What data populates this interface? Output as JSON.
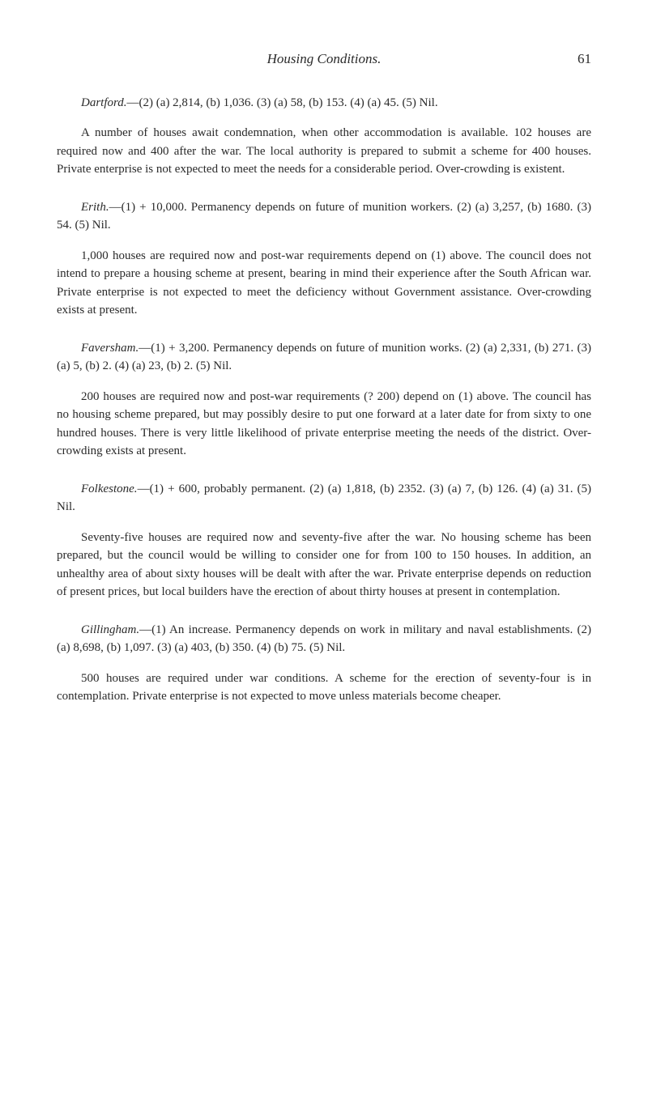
{
  "header": {
    "title": "Housing Conditions.",
    "pageNumber": "61"
  },
  "entries": [
    {
      "place": "Dartford.",
      "headData": "—(2) (a) 2,814, (b) 1,036. (3) (a) 58, (b) 153. (4) (a) 45. (5) Nil.",
      "body": "A number of houses await condemnation, when other accommodation is available. 102 houses are required now and 400 after the war. The local authority is prepared to submit a scheme for 400 houses. Private enterprise is not expected to meet the needs for a considerable period. Over-crowding is existent."
    },
    {
      "place": "Erith.",
      "headData": "—(1) + 10,000. Permanency depends on future of munition workers. (2) (a) 3,257, (b) 1680. (3) 54. (5) Nil.",
      "body": "1,000 houses are required now and post-war requirements depend on (1) above. The council does not intend to prepare a housing scheme at present, bearing in mind their experience after the South African war. Private enterprise is not expected to meet the deficiency without Government assistance. Over-crowding exists at present."
    },
    {
      "place": "Faversham.",
      "headData": "—(1) + 3,200. Permanency depends on future of munition works. (2) (a) 2,331, (b) 271. (3) (a) 5, (b) 2. (4) (a) 23, (b) 2. (5) Nil.",
      "body": "200 houses are required now and post-war requirements (? 200) depend on (1) above. The council has no housing scheme prepared, but may possibly desire to put one forward at a later date for from sixty to one hundred houses. There is very little likelihood of private enterprise meeting the needs of the district. Over-crowding exists at present."
    },
    {
      "place": "Folkestone.",
      "headData": "—(1) + 600, probably permanent. (2) (a) 1,818, (b) 2352. (3) (a) 7, (b) 126. (4) (a) 31. (5) Nil.",
      "body": "Seventy-five houses are required now and seventy-five after the war. No housing scheme has been prepared, but the council would be willing to consider one for from 100 to 150 houses. In addition, an unhealthy area of about sixty houses will be dealt with after the war. Private enterprise depends on reduction of present prices, but local builders have the erection of about thirty houses at present in contemplation."
    },
    {
      "place": "Gillingham.",
      "headData": "—(1) An increase. Permanency depends on work in military and naval establishments. (2) (a) 8,698, (b) 1,097. (3) (a) 403, (b) 350. (4) (b) 75. (5) Nil.",
      "body": "500 houses are required under war conditions. A scheme for the erection of seventy-four is in contemplation. Private enterprise is not expected to move unless materials become cheaper."
    }
  ]
}
